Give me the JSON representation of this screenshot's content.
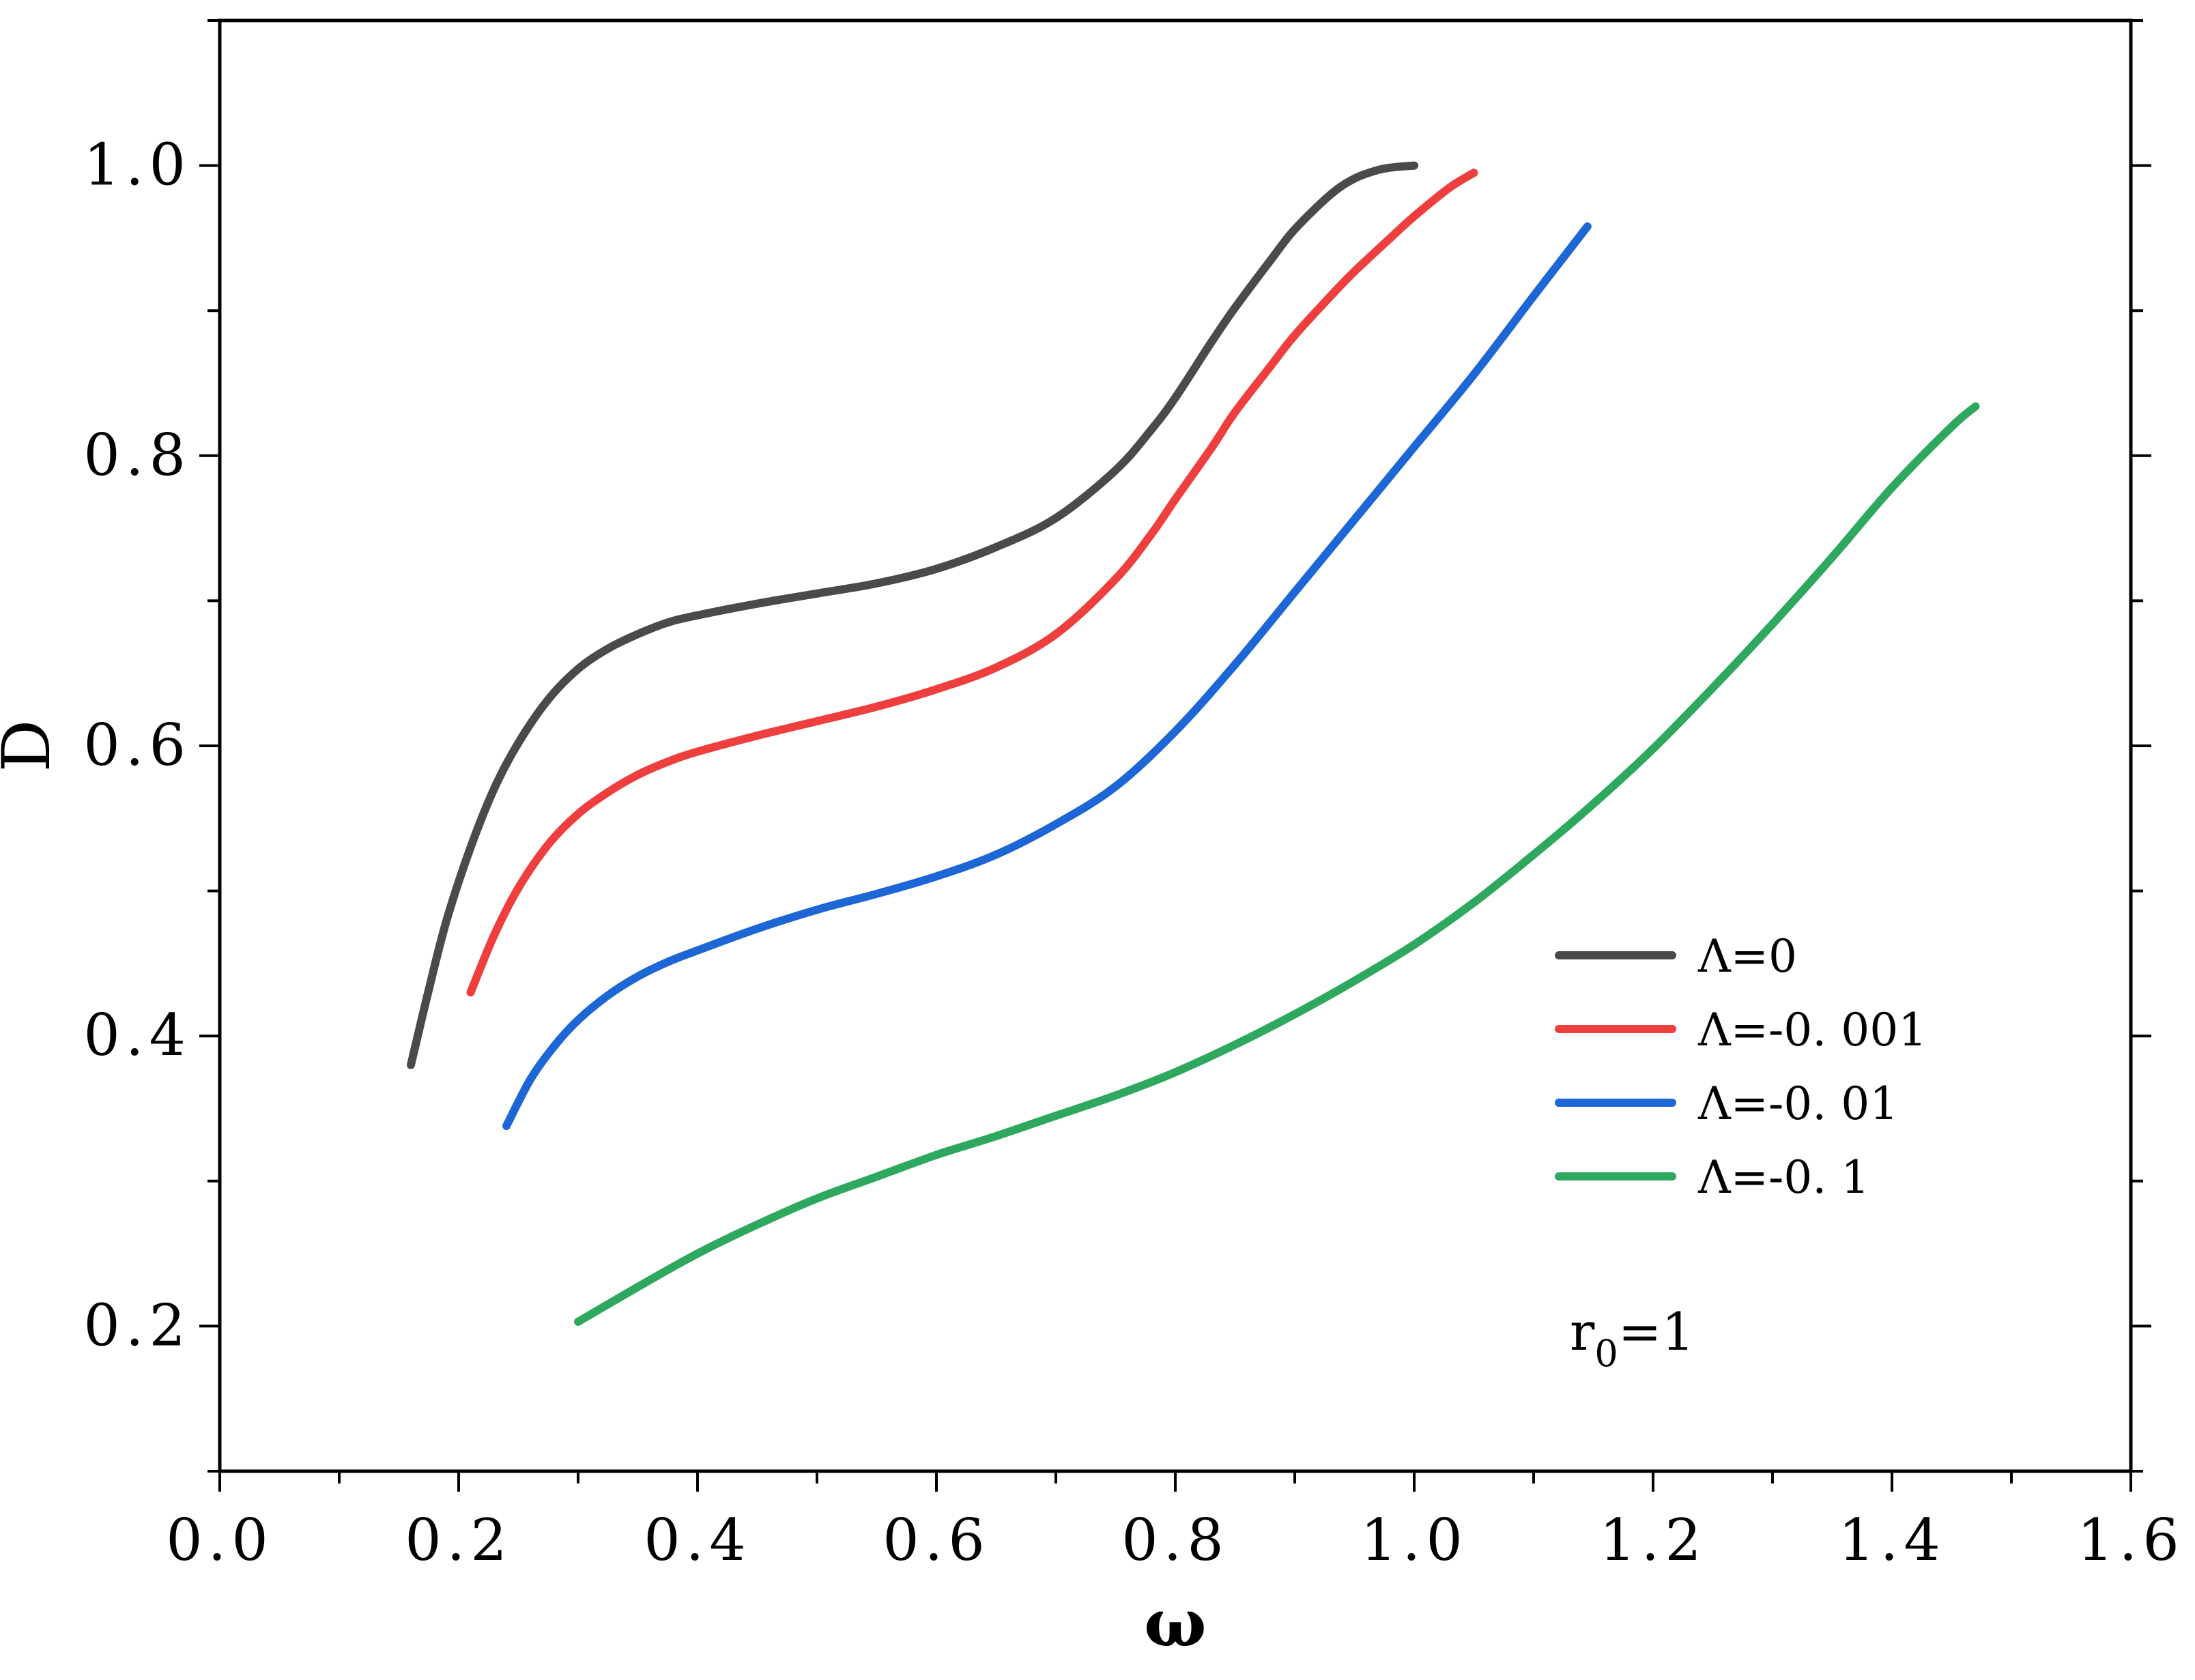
{
  "chart_data": {
    "type": "line",
    "title": "",
    "xlabel": "ω",
    "ylabel": "D",
    "xlim": [
      0.0,
      1.6
    ],
    "ylim": [
      0.1,
      1.1
    ],
    "xticks": [
      "0.0",
      "0.2",
      "0.4",
      "0.6",
      "0.8",
      "1.0",
      "1.2",
      "1.4",
      "1.6"
    ],
    "yticks": [
      "0.2",
      "0.4",
      "0.6",
      "0.8",
      "1.0"
    ],
    "annotation": {
      "text": "r",
      "sub": "0",
      "suffix": "=1"
    },
    "legend_position": "right",
    "grid": false,
    "series": [
      {
        "name": "Λ=0",
        "color": "#4a4a4a",
        "x": [
          0.16,
          0.175,
          0.19,
          0.21,
          0.23,
          0.25,
          0.275,
          0.3,
          0.325,
          0.35,
          0.375,
          0.4,
          0.45,
          0.5,
          0.55,
          0.6,
          0.65,
          0.7,
          0.75,
          0.78,
          0.8,
          0.83,
          0.85,
          0.88,
          0.9,
          0.93,
          0.95,
          0.97,
          0.985,
          1.0
        ],
        "y": [
          0.38,
          0.432,
          0.48,
          0.53,
          0.571,
          0.602,
          0.632,
          0.653,
          0.667,
          0.677,
          0.685,
          0.69,
          0.698,
          0.705,
          0.712,
          0.722,
          0.737,
          0.757,
          0.79,
          0.818,
          0.84,
          0.878,
          0.902,
          0.935,
          0.956,
          0.98,
          0.991,
          0.997,
          0.999,
          1.0
        ]
      },
      {
        "name": "Λ=-0. 001",
        "color": "#ef3e3e",
        "x": [
          0.21,
          0.23,
          0.25,
          0.275,
          0.3,
          0.325,
          0.35,
          0.375,
          0.4,
          0.45,
          0.5,
          0.55,
          0.6,
          0.65,
          0.7,
          0.75,
          0.78,
          0.8,
          0.83,
          0.85,
          0.88,
          0.9,
          0.93,
          0.95,
          0.98,
          1.0,
          1.03,
          1.05
        ],
        "y": [
          0.43,
          0.47,
          0.502,
          0.532,
          0.553,
          0.568,
          0.58,
          0.589,
          0.596,
          0.607,
          0.617,
          0.627,
          0.639,
          0.654,
          0.677,
          0.715,
          0.746,
          0.77,
          0.805,
          0.83,
          0.862,
          0.883,
          0.91,
          0.927,
          0.95,
          0.965,
          0.985,
          0.995
        ]
      },
      {
        "name": "Λ=-0. 01",
        "color": "#1d66d6",
        "x": [
          0.24,
          0.26,
          0.28,
          0.3,
          0.325,
          0.35,
          0.375,
          0.4,
          0.45,
          0.5,
          0.55,
          0.6,
          0.65,
          0.7,
          0.75,
          0.8,
          0.85,
          0.9,
          0.95,
          1.0,
          1.05,
          1.1,
          1.145
        ],
        "y": [
          0.338,
          0.37,
          0.393,
          0.411,
          0.428,
          0.441,
          0.451,
          0.459,
          0.474,
          0.487,
          0.498,
          0.51,
          0.525,
          0.546,
          0.572,
          0.61,
          0.656,
          0.706,
          0.756,
          0.806,
          0.856,
          0.91,
          0.958
        ]
      },
      {
        "name": "Λ=-0. 1",
        "color": "#2ea85e",
        "x": [
          0.3,
          0.35,
          0.4,
          0.45,
          0.5,
          0.55,
          0.6,
          0.65,
          0.7,
          0.75,
          0.8,
          0.85,
          0.9,
          0.95,
          1.0,
          1.05,
          1.1,
          1.15,
          1.2,
          1.25,
          1.3,
          1.35,
          1.4,
          1.45,
          1.47
        ],
        "y": [
          0.203,
          0.227,
          0.25,
          0.27,
          0.288,
          0.303,
          0.318,
          0.331,
          0.345,
          0.359,
          0.375,
          0.394,
          0.415,
          0.438,
          0.463,
          0.492,
          0.525,
          0.56,
          0.598,
          0.64,
          0.684,
          0.73,
          0.778,
          0.82,
          0.834
        ]
      }
    ]
  }
}
